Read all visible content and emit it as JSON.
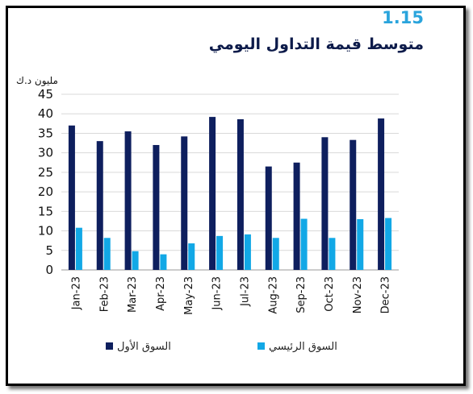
{
  "figure": {
    "number": "1.15",
    "title": "متوسط قيمة التداول اليومي",
    "unit": "مليون د.ك"
  },
  "colors": {
    "premier_market": "#0e1f5e",
    "main_market": "#12a8e6",
    "figure_number": "#2aa4dc",
    "title": "#0d1b4a"
  },
  "chart_data": {
    "type": "bar",
    "categories": [
      "Jan-23",
      "Feb-23",
      "Mar-23",
      "Apr-23",
      "May-23",
      "Jun-23",
      "Jul-23",
      "Aug-23",
      "Sep-23",
      "Oct-23",
      "Nov-23",
      "Dec-23"
    ],
    "series": [
      {
        "name": "السوق الأول",
        "values": [
          37.0,
          33.0,
          35.5,
          32.0,
          34.2,
          39.2,
          38.6,
          26.5,
          27.5,
          34.0,
          33.3,
          38.8
        ]
      },
      {
        "name": "السوق الرئيسي",
        "values": [
          10.8,
          8.2,
          4.8,
          4.0,
          6.8,
          8.7,
          9.1,
          8.2,
          13.1,
          8.2,
          13.0,
          13.3
        ]
      }
    ],
    "ylabel": "مليون د.ك",
    "ylim": [
      0,
      45
    ],
    "yticks": [
      "0",
      "5",
      "10",
      "15",
      "20",
      "25",
      "30",
      "35",
      "40",
      "45"
    ],
    "grid": true,
    "legend_position": "bottom"
  }
}
